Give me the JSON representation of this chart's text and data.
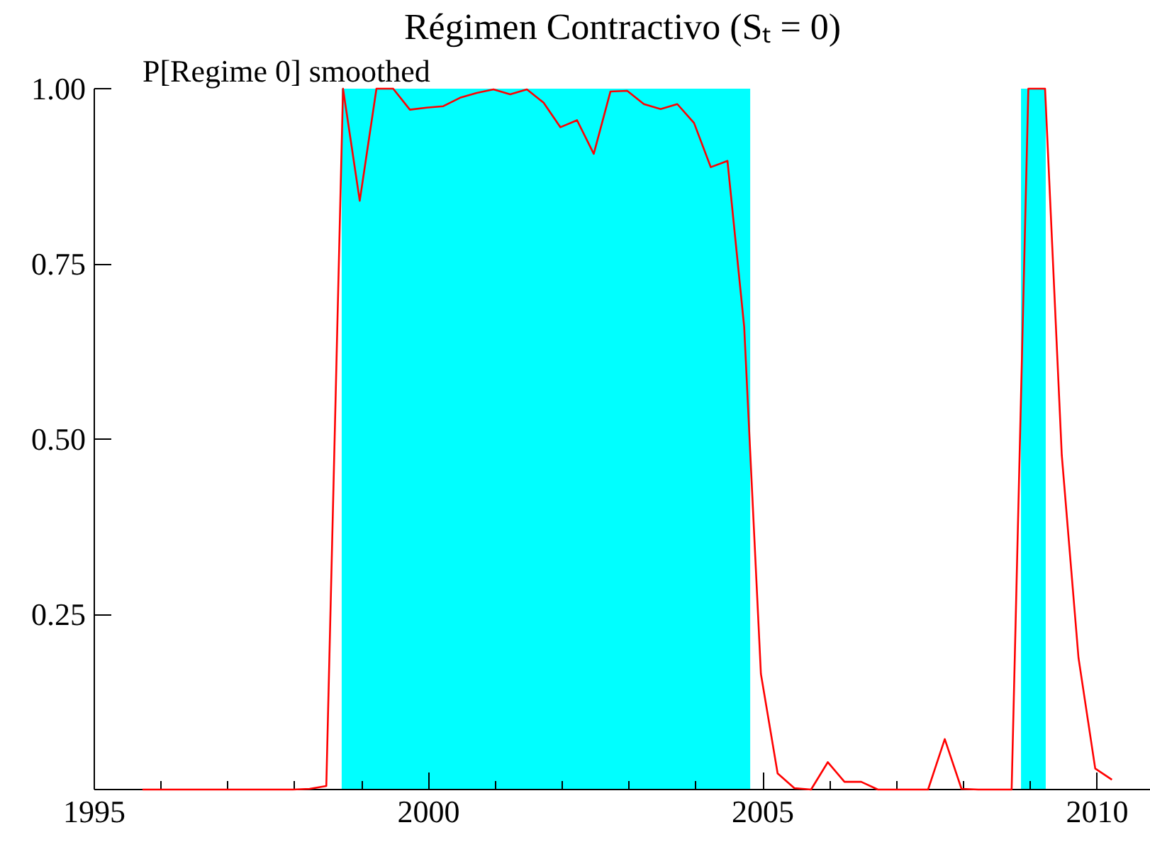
{
  "chart_data": {
    "type": "line",
    "title": "Régimen Contractivo (Sₜ = 0)",
    "series": [
      {
        "name": "P[Regime 0] smoothed",
        "color": "#ff0000",
        "x": [
          1995.72,
          1995.97,
          1996.22,
          1996.47,
          1996.72,
          1996.97,
          1997.22,
          1997.47,
          1997.72,
          1997.97,
          1998.22,
          1998.47,
          1998.72,
          1998.97,
          1999.22,
          1999.47,
          1999.72,
          1999.97,
          2000.22,
          2000.47,
          2000.72,
          2000.97,
          2001.22,
          2001.47,
          2001.72,
          2001.97,
          2002.22,
          2002.47,
          2002.72,
          2002.97,
          2003.22,
          2003.47,
          2003.72,
          2003.97,
          2004.22,
          2004.47,
          2004.72,
          2004.97,
          2005.22,
          2005.47,
          2005.72,
          2005.97,
          2006.22,
          2006.47,
          2006.72,
          2006.97,
          2007.22,
          2007.47,
          2007.72,
          2007.97,
          2008.22,
          2008.47,
          2008.72,
          2008.97,
          2009.22,
          2009.47,
          2009.72,
          2009.97,
          2010.22
        ],
        "values": [
          0,
          0,
          0,
          0,
          0,
          0,
          0,
          0,
          0,
          0,
          0.001,
          0.005,
          1.0,
          0.84,
          1.0,
          1.0,
          0.97,
          0.973,
          0.975,
          0.987,
          0.994,
          0.999,
          0.992,
          0.999,
          0.98,
          0.945,
          0.955,
          0.907,
          0.996,
          0.997,
          0.978,
          0.971,
          0.978,
          0.951,
          0.888,
          0.897,
          0.66,
          0.165,
          0.023,
          0.002,
          0,
          0.039,
          0.011,
          0.011,
          0,
          0,
          0,
          0,
          0.072,
          0.001,
          0,
          0,
          0,
          1.0,
          1.0,
          0.477,
          0.188,
          0.03,
          0.014
        ]
      }
    ],
    "bands": [
      {
        "axis": "x",
        "from": 1998.7,
        "to": 2004.81,
        "color": "#00ffff"
      },
      {
        "axis": "x",
        "from": 2008.86,
        "to": 2009.23,
        "color": "#00ffff"
      }
    ],
    "xlim": [
      1995,
      2010.8
    ],
    "ylim": [
      0,
      1
    ],
    "xticks": [
      1995,
      {
        "value": 1996,
        "label": null
      },
      {
        "value": 1997,
        "label": null
      },
      {
        "value": 1998,
        "label": null
      },
      {
        "value": 1999,
        "label": null
      },
      2000,
      {
        "value": 2001,
        "label": null
      },
      {
        "value": 2002,
        "label": null
      },
      {
        "value": 2003,
        "label": null
      },
      {
        "value": 2004,
        "label": null
      },
      2005,
      {
        "value": 2006,
        "label": null
      },
      {
        "value": 2007,
        "label": null
      },
      {
        "value": 2008,
        "label": null
      },
      {
        "value": 2009,
        "label": null
      },
      2010
    ],
    "yticks": [
      {
        "value": 0.25,
        "label": "0.25"
      },
      {
        "value": 0.5,
        "label": "0.50"
      },
      {
        "value": 0.75,
        "label": "0.75"
      },
      {
        "value": 1.0,
        "label": "1.00"
      }
    ],
    "grid": false
  }
}
